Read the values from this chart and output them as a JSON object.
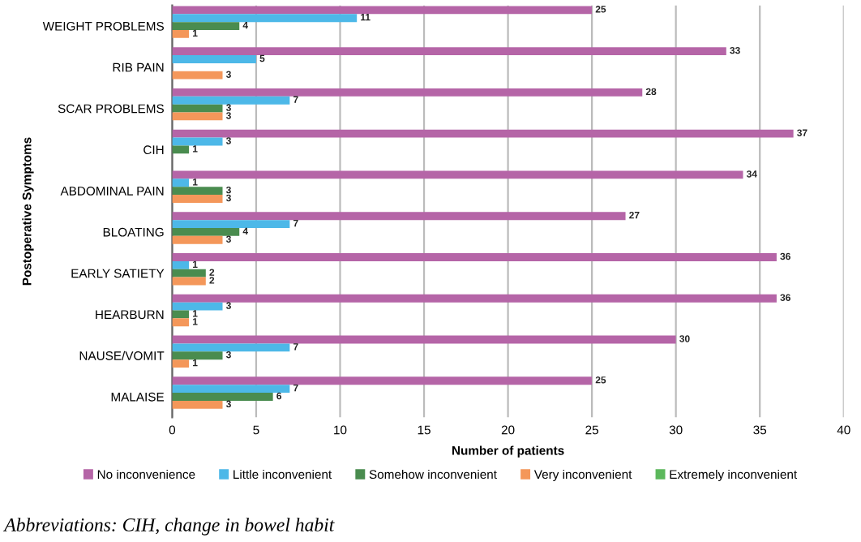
{
  "chart_data": {
    "type": "bar",
    "orientation": "horizontal",
    "xlabel": "Number of patients",
    "ylabel": "Postoperative Symptoms",
    "categories": [
      "WEIGHT PROBLEMS",
      "RIB PAIN",
      "SCAR PROBLEMS",
      "CIH",
      "ABDOMINAL PAIN",
      "BLOATING",
      "EARLY SATIETY",
      "HEARBURN",
      "NAUSE/VOMIT",
      "MALAISE"
    ],
    "series": [
      {
        "name": "No inconvenience",
        "color": "#b565a7",
        "values": [
          25,
          33,
          28,
          37,
          34,
          27,
          36,
          36,
          30,
          25
        ]
      },
      {
        "name": "Little inconvenient",
        "color": "#4db8e8",
        "values": [
          11,
          5,
          7,
          3,
          1,
          7,
          1,
          3,
          7,
          7
        ]
      },
      {
        "name": "Somehow inconvenient",
        "color": "#4a8c4f",
        "values": [
          4,
          null,
          3,
          1,
          3,
          4,
          2,
          1,
          3,
          6
        ]
      },
      {
        "name": "Very inconvenient",
        "color": "#f4975a",
        "values": [
          1,
          3,
          3,
          null,
          3,
          3,
          2,
          1,
          1,
          3
        ]
      },
      {
        "name": "Extremely inconvenient",
        "color": "#5cb85c",
        "values": [
          null,
          null,
          null,
          null,
          null,
          null,
          null,
          null,
          null,
          null
        ]
      }
    ],
    "xlim": [
      0,
      40
    ],
    "xticks": [
      0,
      5,
      10,
      15,
      20,
      25,
      30,
      35,
      40
    ],
    "grid": "x",
    "legend": "bottom",
    "data_labels": true,
    "annotations": [
      "Abbreviations: CIH, change in bowel habit"
    ]
  }
}
